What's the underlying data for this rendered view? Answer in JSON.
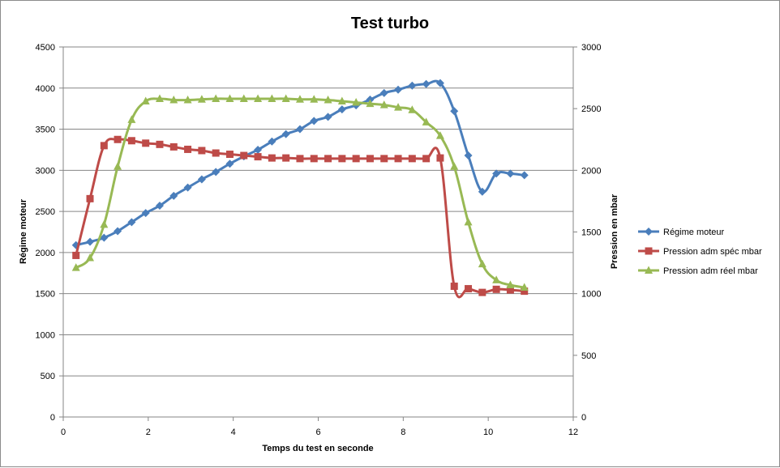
{
  "chart_data": {
    "type": "line",
    "title": "Test turbo",
    "xlabel": "Temps du test en seconde",
    "ylabel": "Régime moteur",
    "y2label": "Pression en mbar",
    "xlim": [
      0,
      12
    ],
    "ylim": [
      0,
      4500
    ],
    "y2lim": [
      0,
      3000
    ],
    "x_ticks": [
      "0",
      "2",
      "4",
      "6",
      "8",
      "10",
      "12"
    ],
    "y_ticks": [
      "0",
      "500",
      "1000",
      "1500",
      "2000",
      "2500",
      "3000",
      "3500",
      "4000",
      "4500"
    ],
    "y2_ticks": [
      "0",
      "500",
      "1000",
      "1500",
      "2000",
      "2500",
      "3000"
    ],
    "grid": "horizontal",
    "legend_position": "right",
    "series": [
      {
        "name": "Régime moteur",
        "axis": "left",
        "color": "#4a7ebb",
        "marker": "diamond",
        "x": [
          0.3,
          0.63,
          0.96,
          1.28,
          1.61,
          1.94,
          2.27,
          2.6,
          2.93,
          3.26,
          3.59,
          3.92,
          4.25,
          4.58,
          4.91,
          5.24,
          5.57,
          5.9,
          6.23,
          6.56,
          6.89,
          7.22,
          7.55,
          7.88,
          8.21,
          8.54,
          8.87,
          9.2,
          9.53,
          9.86,
          10.19,
          10.52,
          10.85
        ],
        "y": [
          2090,
          2130,
          2180,
          2260,
          2370,
          2480,
          2570,
          2690,
          2790,
          2890,
          2980,
          3080,
          3170,
          3250,
          3350,
          3440,
          3500,
          3600,
          3650,
          3740,
          3790,
          3860,
          3940,
          3980,
          4030,
          4050,
          4060,
          3720,
          3180,
          2740,
          2960,
          2960,
          2940
        ]
      },
      {
        "name": "Pression adm spéc mbar",
        "axis": "right",
        "color": "#be4b48",
        "marker": "square",
        "x": [
          0.3,
          0.63,
          0.96,
          1.28,
          1.61,
          1.94,
          2.27,
          2.6,
          2.93,
          3.26,
          3.59,
          3.92,
          4.25,
          4.58,
          4.91,
          5.24,
          5.57,
          5.9,
          6.23,
          6.56,
          6.89,
          7.22,
          7.55,
          7.88,
          8.21,
          8.54,
          8.87,
          9.2,
          9.53,
          9.86,
          10.19,
          10.52,
          10.85
        ],
        "y": [
          1310,
          1770,
          2200,
          2250,
          2240,
          2220,
          2210,
          2190,
          2170,
          2160,
          2140,
          2130,
          2120,
          2110,
          2100,
          2100,
          2095,
          2095,
          2095,
          2095,
          2095,
          2095,
          2095,
          2095,
          2095,
          2095,
          2100,
          1060,
          1040,
          1010,
          1035,
          1030,
          1020
        ]
      },
      {
        "name": "Pression adm réel mbar",
        "axis": "right",
        "color": "#98b954",
        "marker": "triangle",
        "x": [
          0.3,
          0.63,
          0.96,
          1.28,
          1.61,
          1.94,
          2.27,
          2.6,
          2.93,
          3.26,
          3.59,
          3.92,
          4.25,
          4.58,
          4.91,
          5.24,
          5.57,
          5.9,
          6.23,
          6.56,
          6.89,
          7.22,
          7.55,
          7.88,
          8.21,
          8.54,
          8.87,
          9.2,
          9.53,
          9.86,
          10.19,
          10.52,
          10.85
        ],
        "y": [
          1210,
          1290,
          1560,
          2030,
          2410,
          2560,
          2580,
          2570,
          2570,
          2575,
          2580,
          2580,
          2580,
          2580,
          2580,
          2580,
          2575,
          2575,
          2570,
          2560,
          2550,
          2540,
          2530,
          2510,
          2490,
          2390,
          2280,
          2030,
          1580,
          1240,
          1110,
          1070,
          1050
        ]
      }
    ]
  }
}
